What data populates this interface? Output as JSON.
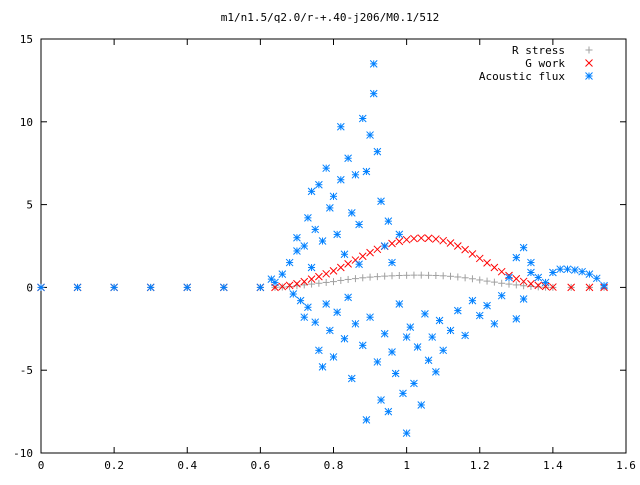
{
  "chart_data": {
    "type": "scatter",
    "title": "m1/n1.5/q2.0/r-+.40-j206/M0.1/512",
    "xlabel": "",
    "ylabel": "",
    "xlim": [
      0,
      1.6
    ],
    "ylim": [
      -10,
      15
    ],
    "xticks": [
      "0",
      "0.2",
      "0.4",
      "0.6",
      "0.8",
      "1",
      "1.2",
      "1.4",
      "1.6"
    ],
    "yticks": [
      "-10",
      "-5",
      "0",
      "5",
      "10",
      "15"
    ],
    "grid": false,
    "legend_position": "top-right",
    "series": [
      {
        "name": "R stress",
        "marker": "plus",
        "color": "#a0a0a0",
        "points": [
          [
            0.0,
            0.0
          ],
          [
            0.1,
            0.0
          ],
          [
            0.2,
            0.0
          ],
          [
            0.3,
            0.0
          ],
          [
            0.4,
            0.0
          ],
          [
            0.5,
            0.0
          ],
          [
            0.6,
            0.0
          ],
          [
            0.64,
            0.0
          ],
          [
            0.66,
            0.02
          ],
          [
            0.68,
            0.05
          ],
          [
            0.7,
            0.1
          ],
          [
            0.72,
            0.15
          ],
          [
            0.74,
            0.2
          ],
          [
            0.76,
            0.25
          ],
          [
            0.78,
            0.3
          ],
          [
            0.8,
            0.35
          ],
          [
            0.82,
            0.42
          ],
          [
            0.84,
            0.48
          ],
          [
            0.86,
            0.53
          ],
          [
            0.88,
            0.58
          ],
          [
            0.9,
            0.62
          ],
          [
            0.92,
            0.65
          ],
          [
            0.94,
            0.68
          ],
          [
            0.96,
            0.7
          ],
          [
            0.98,
            0.72
          ],
          [
            1.0,
            0.73
          ],
          [
            1.02,
            0.74
          ],
          [
            1.04,
            0.74
          ],
          [
            1.06,
            0.73
          ],
          [
            1.08,
            0.72
          ],
          [
            1.1,
            0.7
          ],
          [
            1.12,
            0.67
          ],
          [
            1.14,
            0.63
          ],
          [
            1.16,
            0.58
          ],
          [
            1.18,
            0.52
          ],
          [
            1.2,
            0.45
          ],
          [
            1.22,
            0.38
          ],
          [
            1.24,
            0.32
          ],
          [
            1.26,
            0.25
          ],
          [
            1.28,
            0.2
          ],
          [
            1.3,
            0.15
          ],
          [
            1.32,
            0.1
          ],
          [
            1.34,
            0.06
          ],
          [
            1.36,
            0.03
          ],
          [
            1.38,
            0.01
          ],
          [
            1.4,
            0.0
          ],
          [
            1.45,
            0.0
          ],
          [
            1.5,
            0.0
          ],
          [
            1.54,
            0.0
          ]
        ]
      },
      {
        "name": "G work",
        "marker": "cross",
        "color": "#ff0000",
        "points": [
          [
            0.0,
            0.0
          ],
          [
            0.1,
            0.0
          ],
          [
            0.2,
            0.0
          ],
          [
            0.3,
            0.0
          ],
          [
            0.4,
            0.0
          ],
          [
            0.5,
            0.0
          ],
          [
            0.6,
            0.0
          ],
          [
            0.64,
            0.0
          ],
          [
            0.66,
            0.05
          ],
          [
            0.68,
            0.12
          ],
          [
            0.7,
            0.22
          ],
          [
            0.72,
            0.35
          ],
          [
            0.74,
            0.5
          ],
          [
            0.76,
            0.65
          ],
          [
            0.78,
            0.82
          ],
          [
            0.8,
            1.0
          ],
          [
            0.82,
            1.2
          ],
          [
            0.84,
            1.42
          ],
          [
            0.86,
            1.65
          ],
          [
            0.88,
            1.88
          ],
          [
            0.9,
            2.1
          ],
          [
            0.92,
            2.3
          ],
          [
            0.94,
            2.48
          ],
          [
            0.96,
            2.65
          ],
          [
            0.98,
            2.78
          ],
          [
            1.0,
            2.88
          ],
          [
            1.02,
            2.95
          ],
          [
            1.04,
            2.98
          ],
          [
            1.06,
            2.97
          ],
          [
            1.08,
            2.92
          ],
          [
            1.1,
            2.82
          ],
          [
            1.12,
            2.68
          ],
          [
            1.14,
            2.5
          ],
          [
            1.16,
            2.28
          ],
          [
            1.18,
            2.02
          ],
          [
            1.2,
            1.75
          ],
          [
            1.22,
            1.48
          ],
          [
            1.24,
            1.2
          ],
          [
            1.26,
            0.95
          ],
          [
            1.28,
            0.72
          ],
          [
            1.3,
            0.52
          ],
          [
            1.32,
            0.36
          ],
          [
            1.34,
            0.22
          ],
          [
            1.36,
            0.12
          ],
          [
            1.38,
            0.06
          ],
          [
            1.4,
            0.02
          ],
          [
            1.45,
            0.0
          ],
          [
            1.5,
            0.0
          ],
          [
            1.54,
            0.0
          ]
        ]
      },
      {
        "name": "Acoustic flux",
        "marker": "star",
        "color": "#0080ff",
        "points": [
          [
            0.0,
            0.0
          ],
          [
            0.1,
            0.0
          ],
          [
            0.2,
            0.0
          ],
          [
            0.3,
            0.0
          ],
          [
            0.4,
            0.0
          ],
          [
            0.5,
            0.0
          ],
          [
            0.6,
            0.0
          ],
          [
            0.63,
            0.5
          ],
          [
            0.64,
            0.3
          ],
          [
            0.66,
            0.8
          ],
          [
            0.68,
            1.5
          ],
          [
            0.69,
            -0.4
          ],
          [
            0.7,
            2.2
          ],
          [
            0.7,
            3.0
          ],
          [
            0.71,
            -0.8
          ],
          [
            0.72,
            -1.8
          ],
          [
            0.72,
            2.5
          ],
          [
            0.73,
            4.2
          ],
          [
            0.73,
            -1.2
          ],
          [
            0.74,
            5.8
          ],
          [
            0.74,
            1.2
          ],
          [
            0.75,
            -2.1
          ],
          [
            0.75,
            3.5
          ],
          [
            0.76,
            -3.8
          ],
          [
            0.76,
            6.2
          ],
          [
            0.77,
            -4.8
          ],
          [
            0.77,
            2.8
          ],
          [
            0.78,
            7.2
          ],
          [
            0.78,
            -1.0
          ],
          [
            0.79,
            4.8
          ],
          [
            0.79,
            -2.6
          ],
          [
            0.8,
            5.5
          ],
          [
            0.8,
            -4.2
          ],
          [
            0.81,
            3.2
          ],
          [
            0.81,
            -1.5
          ],
          [
            0.82,
            9.7
          ],
          [
            0.82,
            6.5
          ],
          [
            0.83,
            2.0
          ],
          [
            0.83,
            -3.1
          ],
          [
            0.84,
            7.8
          ],
          [
            0.84,
            -0.6
          ],
          [
            0.85,
            4.5
          ],
          [
            0.85,
            -5.5
          ],
          [
            0.86,
            6.8
          ],
          [
            0.86,
            -2.2
          ],
          [
            0.87,
            1.4
          ],
          [
            0.87,
            3.8
          ],
          [
            0.88,
            10.2
          ],
          [
            0.88,
            -3.5
          ],
          [
            0.89,
            7.0
          ],
          [
            0.89,
            -8.0
          ],
          [
            0.9,
            9.2
          ],
          [
            0.9,
            -1.8
          ],
          [
            0.91,
            13.5
          ],
          [
            0.91,
            11.7
          ],
          [
            0.92,
            8.2
          ],
          [
            0.92,
            -4.5
          ],
          [
            0.93,
            5.2
          ],
          [
            0.93,
            -6.8
          ],
          [
            0.94,
            2.5
          ],
          [
            0.94,
            -2.8
          ],
          [
            0.95,
            4.0
          ],
          [
            0.95,
            -7.5
          ],
          [
            0.96,
            1.5
          ],
          [
            0.96,
            -3.9
          ],
          [
            0.97,
            -5.2
          ],
          [
            0.98,
            3.2
          ],
          [
            0.98,
            -1.0
          ],
          [
            0.99,
            -6.4
          ],
          [
            1.0,
            -3.0
          ],
          [
            1.0,
            -8.8
          ],
          [
            1.01,
            -2.4
          ],
          [
            1.02,
            -5.8
          ],
          [
            1.03,
            -3.6
          ],
          [
            1.04,
            -7.1
          ],
          [
            1.05,
            -1.6
          ],
          [
            1.06,
            -4.4
          ],
          [
            1.07,
            -3.0
          ],
          [
            1.08,
            -5.1
          ],
          [
            1.09,
            -2.0
          ],
          [
            1.1,
            -3.8
          ],
          [
            1.12,
            -2.6
          ],
          [
            1.14,
            -1.4
          ],
          [
            1.16,
            -2.9
          ],
          [
            1.18,
            -0.8
          ],
          [
            1.2,
            -1.7
          ],
          [
            1.22,
            -1.1
          ],
          [
            1.24,
            -2.2
          ],
          [
            1.26,
            -0.5
          ],
          [
            1.28,
            0.6
          ],
          [
            1.3,
            1.8
          ],
          [
            1.3,
            -1.9
          ],
          [
            1.32,
            2.4
          ],
          [
            1.32,
            -0.7
          ],
          [
            1.34,
            1.5
          ],
          [
            1.34,
            0.9
          ],
          [
            1.36,
            0.6
          ],
          [
            1.38,
            0.3
          ],
          [
            1.4,
            0.9
          ],
          [
            1.42,
            1.1
          ],
          [
            1.44,
            1.1
          ],
          [
            1.46,
            1.05
          ],
          [
            1.48,
            0.95
          ],
          [
            1.5,
            0.8
          ],
          [
            1.52,
            0.55
          ],
          [
            1.54,
            0.1
          ]
        ]
      }
    ]
  }
}
